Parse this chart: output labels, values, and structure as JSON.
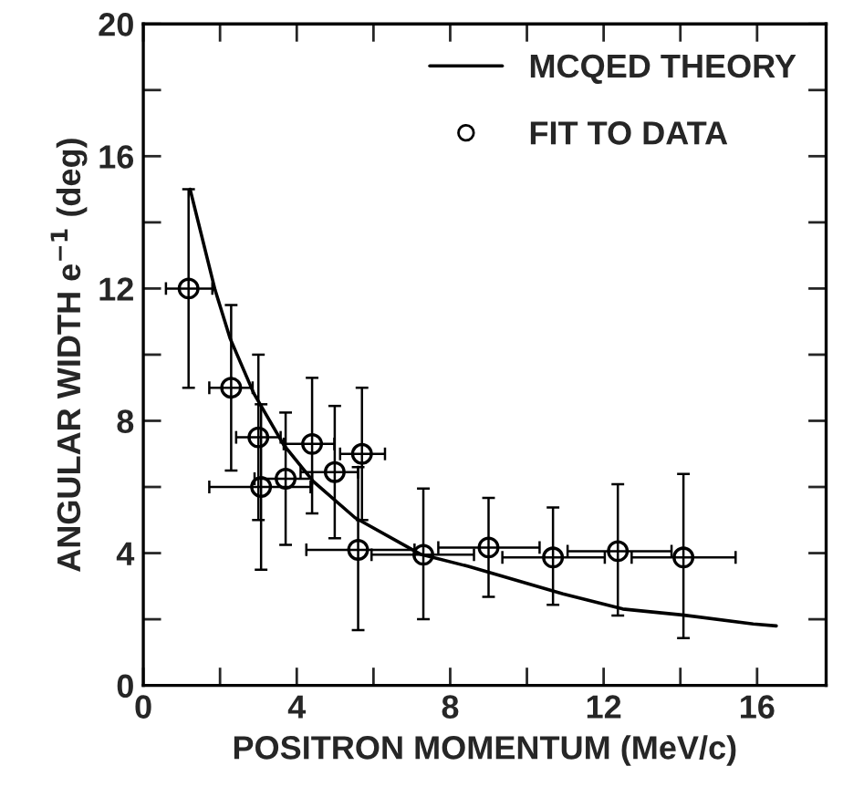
{
  "chart_data": {
    "type": "scatter",
    "xlabel": "POSITRON MOMENTUM (MeV/c)",
    "ylabel": "ANGULAR WIDTH e$^{−1}$ (deg)",
    "xlim": [
      0,
      17.8
    ],
    "ylim": [
      0,
      20
    ],
    "xticks": [
      0,
      {
        "value": 2,
        "label": null
      },
      4,
      {
        "value": 6,
        "label": null
      },
      8,
      {
        "value": 10,
        "label": null
      },
      12,
      {
        "value": 14,
        "label": null
      },
      16
    ],
    "yticks": [
      0,
      {
        "value": 2,
        "label": null
      },
      4,
      {
        "value": 6,
        "label": null
      },
      8,
      {
        "value": 10,
        "label": null
      },
      12,
      {
        "value": 14,
        "label": null
      },
      16,
      {
        "value": 18,
        "label": null
      },
      20
    ],
    "legend": "top right",
    "grid": false,
    "series": [
      {
        "name": "MCQED THEORY",
        "type": "line",
        "marker": "none",
        "line_style": "solid",
        "color": "#000000",
        "x": [
          1.22,
          1.87,
          2.26,
          2.88,
          3.66,
          4.43,
          5.52,
          7.22,
          8.47,
          10.94,
          12.5,
          14.05,
          15.9,
          16.5
        ],
        "values": [
          15.0,
          11.96,
          10.5,
          8.83,
          7.27,
          6.17,
          5.07,
          3.97,
          3.6,
          2.77,
          2.31,
          2.13,
          1.86,
          1.8
        ]
      },
      {
        "name": "FIT TO DATA",
        "marker": "circle",
        "color": "#000000",
        "x": [
          1.18,
          2.29,
          3.0,
          3.07,
          3.71,
          4.4,
          4.99,
          5.7,
          5.6,
          7.3,
          9.0,
          10.68,
          12.37,
          14.08
        ],
        "values": [
          12.0,
          9.0,
          7.5,
          6.0,
          6.25,
          7.3,
          6.45,
          7.0,
          4.1,
          3.95,
          4.17,
          3.87,
          4.06,
          3.87
        ],
        "errors": [
          [
            9.0,
            15.0
          ],
          [
            6.5,
            11.5
          ],
          [
            5.0,
            10.0
          ],
          [
            3.5,
            8.5
          ],
          [
            4.25,
            8.25
          ],
          [
            5.2,
            9.3
          ],
          [
            4.45,
            8.45
          ],
          [
            5.0,
            9.0
          ],
          [
            1.67,
            6.6
          ],
          [
            2.0,
            5.95
          ],
          [
            2.68,
            5.67
          ],
          [
            2.44,
            5.38
          ],
          [
            2.11,
            6.08
          ],
          [
            1.43,
            6.39
          ]
        ],
        "xerrors": [
          [
            0.59,
            1.8
          ],
          [
            1.72,
            2.85
          ],
          [
            2.42,
            3.58
          ],
          [
            1.72,
            4.36
          ],
          [
            2.9,
            4.4
          ],
          [
            3.66,
            4.98
          ],
          [
            4.1,
            5.6
          ],
          [
            5.13,
            6.3
          ],
          [
            4.25,
            7.07
          ],
          [
            5.95,
            8.62
          ],
          [
            7.69,
            10.33
          ],
          [
            9.36,
            12.03
          ],
          [
            11.06,
            13.77
          ],
          [
            12.73,
            15.44
          ]
        ]
      }
    ]
  }
}
